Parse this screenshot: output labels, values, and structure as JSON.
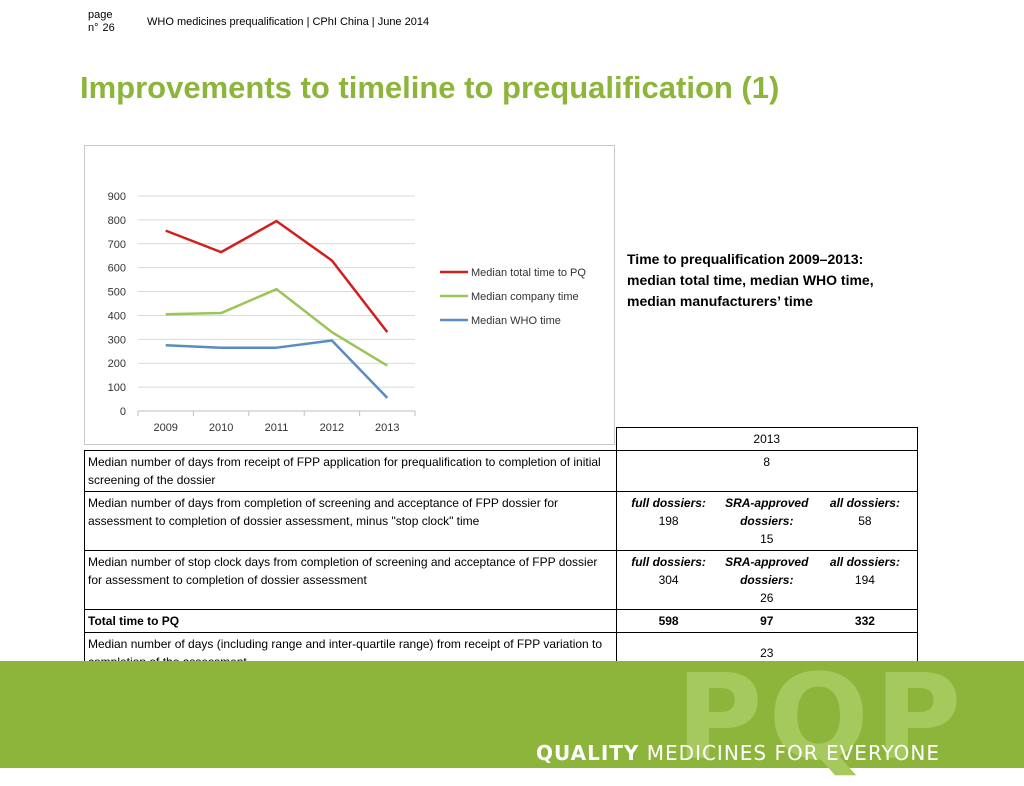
{
  "header": {
    "page_label": "page",
    "n_label": "n°",
    "page_number": "26",
    "text": "WHO medicines prequalification | CPhI China | June 2014"
  },
  "title": "Improvements to timeline to prequalification (1)",
  "caption": "Time to prequalification 2009–2013: median total time, median WHO time, median manufacturers’ time",
  "chart_data": {
    "type": "line",
    "x": [
      "2009",
      "2010",
      "2011",
      "2012",
      "2013"
    ],
    "ylim": [
      0,
      900
    ],
    "yticks": [
      "0",
      "100",
      "200",
      "300",
      "400",
      "500",
      "600",
      "700",
      "800",
      "900"
    ],
    "grid": true,
    "legend_position": "right",
    "series": [
      {
        "name": "Median total time to PQ",
        "color": "#d0201e",
        "values": [
          755,
          665,
          795,
          630,
          330
        ]
      },
      {
        "name": "Median company time",
        "color": "#9bc45a",
        "values": [
          405,
          410,
          510,
          330,
          190
        ]
      },
      {
        "name": "Median WHO time",
        "color": "#5b8bc4",
        "values": [
          275,
          265,
          265,
          295,
          55
        ]
      }
    ]
  },
  "table": {
    "year_header": "2013",
    "row1": {
      "desc": "Median number of days from receipt of FPP application for prequalification to completion of initial screening of the dossier",
      "value": "8"
    },
    "row2": {
      "desc": "Median number of days from completion of screening and acceptance of FPP dossier for assessment to completion of dossier assessment, minus \"stop clock\" time",
      "full_label": "full dossiers:",
      "full_value": "198",
      "sra_label": "SRA-approved dossiers:",
      "sra_value": "15",
      "all_label": "all dossiers:",
      "all_value": "58"
    },
    "row3": {
      "desc": "Median number of stop clock days from completion of screening and acceptance of FPP dossier for assessment to completion of dossier assessment",
      "full_label": "full dossiers:",
      "full_value": "304",
      "sra_label": "SRA-approved dossiers:",
      "sra_value": "26",
      "all_label": "all dossiers:",
      "all_value": "194"
    },
    "total": {
      "label": "Total time to PQ",
      "full": "598",
      "sra": "97",
      "all": "332"
    },
    "row5": {
      "desc": "Median number of days (including range and inter-quartile range) from receipt of FPP variation to completion of the assessment",
      "value": "23"
    }
  },
  "footer": {
    "logo": "PQP",
    "tagline_bold": "QUALITY",
    "tagline_rest": " MEDICINES FOR EVERYONE"
  }
}
